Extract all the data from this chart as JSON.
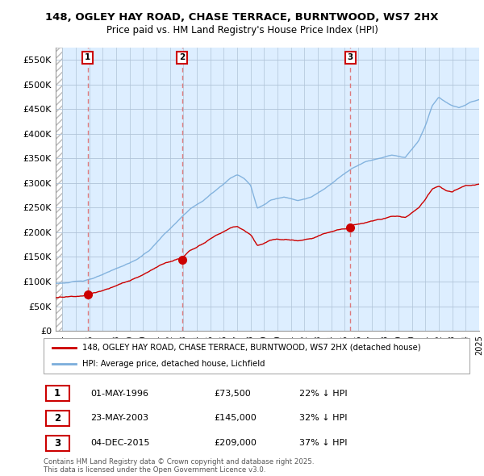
{
  "title": "148, OGLEY HAY ROAD, CHASE TERRACE, BURNTWOOD, WS7 2HX",
  "subtitle": "Price paid vs. HM Land Registry's House Price Index (HPI)",
  "legend_line1": "148, OGLEY HAY ROAD, CHASE TERRACE, BURNTWOOD, WS7 2HX (detached house)",
  "legend_line2": "HPI: Average price, detached house, Lichfield",
  "sale_dates": [
    1996.37,
    2003.39,
    2015.92
  ],
  "sale_prices": [
    73500,
    145000,
    209000
  ],
  "sale_labels": [
    "1",
    "2",
    "3"
  ],
  "sale_info": [
    {
      "num": "1",
      "date": "01-MAY-1996",
      "price": "£73,500",
      "pct": "22% ↓ HPI"
    },
    {
      "num": "2",
      "date": "23-MAY-2003",
      "price": "£145,000",
      "pct": "32% ↓ HPI"
    },
    {
      "num": "3",
      "date": "04-DEC-2015",
      "price": "£209,000",
      "pct": "37% ↓ HPI"
    }
  ],
  "footer": "Contains HM Land Registry data © Crown copyright and database right 2025.\nThis data is licensed under the Open Government Licence v3.0.",
  "xmin": 1994.0,
  "xmax": 2025.5,
  "ymin": 0,
  "ymax": 575000,
  "yticks": [
    0,
    50000,
    100000,
    150000,
    200000,
    250000,
    300000,
    350000,
    400000,
    450000,
    500000,
    550000
  ],
  "ytick_labels": [
    "£0",
    "£50K",
    "£100K",
    "£150K",
    "£200K",
    "£250K",
    "£300K",
    "£350K",
    "£400K",
    "£450K",
    "£500K",
    "£550K"
  ],
  "red_color": "#cc0000",
  "blue_color": "#7aaddb",
  "bg_color": "#ddeeff",
  "hatch_color": "#bbbbbb",
  "grid_color": "#b0c4d8",
  "vline_color": "#dd6666"
}
